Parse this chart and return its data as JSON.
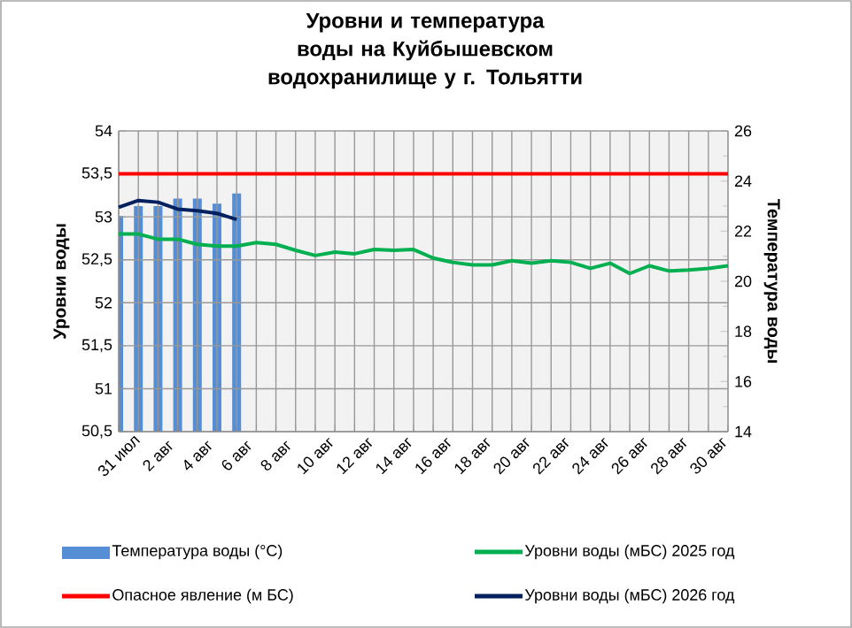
{
  "chart_data": {
    "type": "line",
    "title": "Уровни  и температура  воды на Куйбышевском водохранилище у г. Тольятти",
    "ylabel": "Уровни воды",
    "y2label": "Температура воды",
    "categories": [
      "31 июл",
      null,
      "2 авг",
      null,
      "4 авг",
      null,
      "6 авг",
      null,
      "8 авг",
      null,
      "10 авг",
      null,
      "12 авг",
      null,
      "14 авг",
      null,
      "16 авг",
      null,
      "18 авг",
      null,
      "20 авг",
      null,
      "22 авг",
      null,
      "24 авг",
      null,
      "26 авг",
      null,
      "28 авг",
      null,
      "30 авг",
      null
    ],
    "series": [
      {
        "name": "Температура воды (°С)",
        "type": "bar",
        "axis": "y2",
        "color": "#558ed5",
        "values": [
          22.6,
          23.0,
          23.0,
          23.3,
          23.3,
          23.1,
          23.5,
          null,
          null,
          null,
          null,
          null,
          null,
          null,
          null,
          null,
          null,
          null,
          null,
          null,
          null,
          null,
          null,
          null,
          null,
          null,
          null,
          null,
          null,
          null,
          null,
          null
        ]
      },
      {
        "name": "Опасное явление    (м БС)",
        "type": "line",
        "color": "#ff0000",
        "values": [
          53.5,
          53.5,
          53.5,
          53.5,
          53.5,
          53.5,
          53.5,
          53.5,
          53.5,
          53.5,
          53.5,
          53.5,
          53.5,
          53.5,
          53.5,
          53.5,
          53.5,
          53.5,
          53.5,
          53.5,
          53.5,
          53.5,
          53.5,
          53.5,
          53.5,
          53.5,
          53.5,
          53.5,
          53.5,
          53.5,
          53.5,
          53.5
        ]
      },
      {
        "name": "Уровни воды (мБС)  2025 год",
        "type": "line",
        "color": "#00b050",
        "values": [
          52.8,
          52.8,
          52.74,
          52.74,
          52.68,
          52.66,
          52.66,
          52.7,
          52.68,
          52.61,
          52.55,
          52.59,
          52.57,
          52.62,
          52.61,
          52.62,
          52.52,
          52.47,
          52.44,
          52.44,
          52.49,
          52.46,
          52.49,
          52.47,
          52.4,
          52.46,
          52.34,
          52.43,
          52.37,
          52.38,
          52.4,
          52.43
        ]
      },
      {
        "name": "Уровни воды (мБС)  2026 год",
        "type": "line",
        "color": "#002060",
        "values": [
          53.11,
          53.19,
          53.17,
          53.09,
          53.07,
          53.04,
          52.97,
          null,
          null,
          null,
          null,
          null,
          null,
          null,
          null,
          null,
          null,
          null,
          null,
          null,
          null,
          null,
          null,
          null,
          null,
          null,
          null,
          null,
          null,
          null,
          null,
          null
        ]
      }
    ],
    "ylim": [
      50.5,
      54
    ],
    "yticks": [
      {
        "value": 50.5,
        "label": "50,5"
      },
      51,
      {
        "value": 51.5,
        "label": "51,5"
      },
      52,
      {
        "value": 52.5,
        "label": "52,5"
      },
      53,
      {
        "value": 53.5,
        "label": "53,5"
      },
      54
    ],
    "y2lim": [
      14,
      26
    ],
    "y2ticks": [
      14,
      16,
      18,
      20,
      22,
      24,
      26
    ],
    "grid": true,
    "legend": "bottom"
  }
}
